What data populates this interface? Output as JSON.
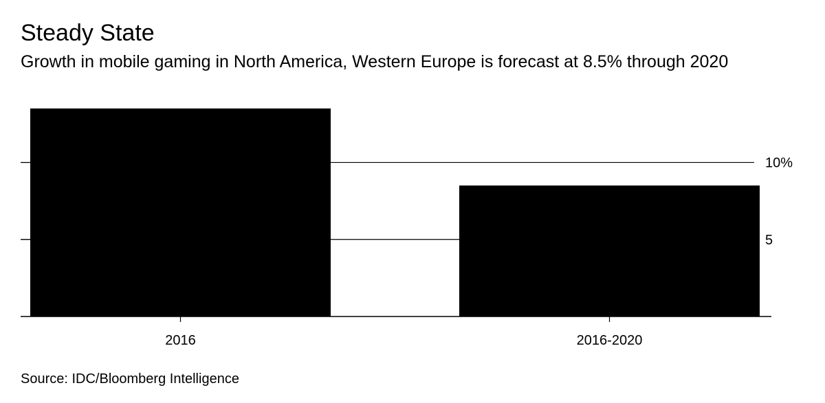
{
  "chart_data": {
    "type": "bar",
    "title": "Steady State",
    "subtitle": "Growth in mobile gaming in North America, Western Europe is forecast at 8.5% through 2020",
    "categories": [
      "2016",
      "2016-2020"
    ],
    "values": [
      13.5,
      8.5
    ],
    "ylim": [
      0,
      13.5
    ],
    "yticks": [
      {
        "value": 10,
        "label": "10%"
      },
      {
        "value": 5,
        "label": "5"
      }
    ],
    "grid": true,
    "y_axis_side": "right",
    "bar_color": "#000000",
    "source": "Source: IDC/Bloomberg Intelligence"
  }
}
